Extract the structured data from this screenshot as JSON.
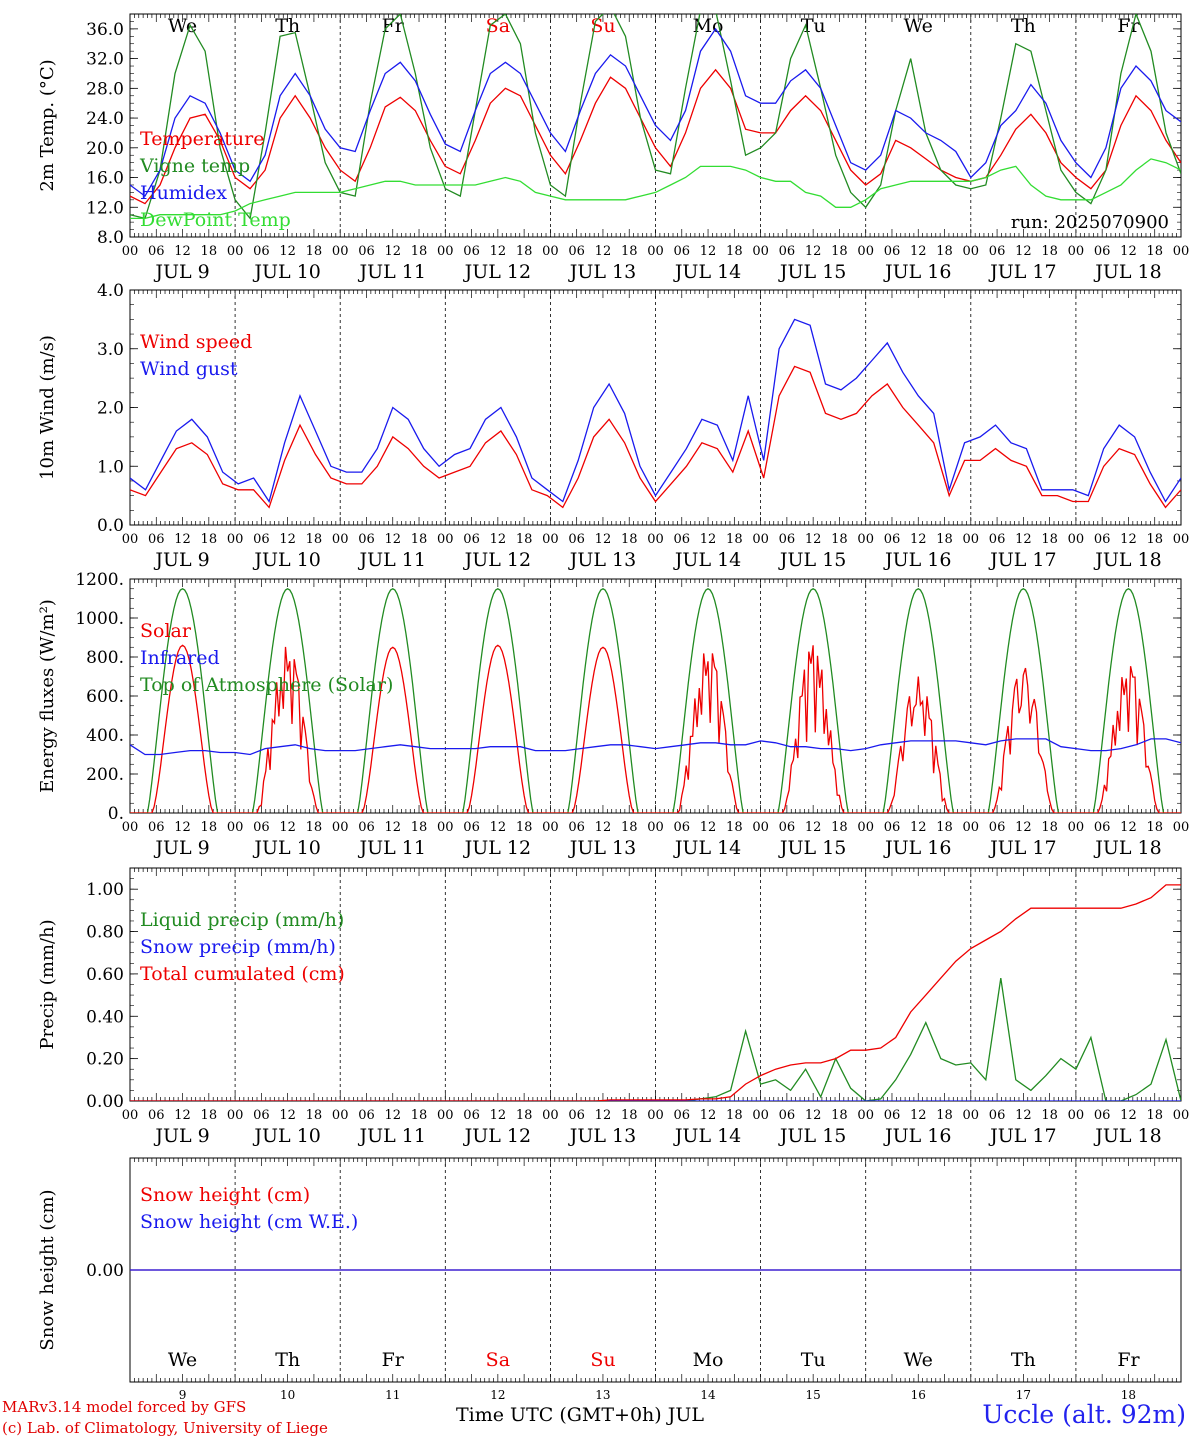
{
  "footer": {
    "model": "MARv3.14 model forced by GFS",
    "credit": "(c) Lab. of Climatology, University of Liege",
    "xlabel": "Time UTC (GMT+0h) JUL",
    "station": "Uccle (alt. 92m)"
  },
  "colors": {
    "red": "#ee0000",
    "green": "#228b22",
    "blue": "#1a1aee",
    "lightgreen": "#33dd33",
    "weekend": "#ee0000"
  },
  "chart_data": {
    "days": [
      "JUL  9",
      "JUL 10",
      "JUL 11",
      "JUL 12",
      "JUL 13",
      "JUL 14",
      "JUL 15",
      "JUL 16",
      "JUL 17",
      "JUL 18"
    ],
    "hour_ticks": [
      "00",
      "06",
      "12",
      "18"
    ],
    "weekdays": [
      "We",
      "Th",
      "Fr",
      "Sa",
      "Su",
      "Mo",
      "Tu",
      "We",
      "Th",
      "Fr"
    ],
    "weekend_days": [
      "Sa",
      "Su"
    ],
    "day_numbers": [
      "9",
      "10",
      "11",
      "12",
      "13",
      "14",
      "15",
      "16",
      "17",
      "18"
    ],
    "panels": [
      {
        "type": "line",
        "ylabel": "2m Temp. (°C)",
        "ylim": [
          8,
          38
        ],
        "yticks": [
          "8.0",
          "12.0",
          "16.0",
          "20.0",
          "24.0",
          "28.0",
          "32.0",
          "36.0"
        ],
        "annotation": "run: 2025070900",
        "legend": [
          "Temperature",
          "Vigne temp",
          "Humidex",
          "DewPoint Temp"
        ],
        "series": [
          {
            "name": "Temperature",
            "color": "red",
            "values": [
              13.5,
              12.5,
              15,
              20,
              24,
              24.5,
              21,
              16,
              14.5,
              17,
              24,
              27,
              24,
              20,
              17,
              15.5,
              20,
              25.5,
              26.8,
              25,
              21,
              17.5,
              16.5,
              21,
              26,
              28,
              27,
              23,
              19,
              16.5,
              21,
              26,
              29.5,
              28,
              24,
              20,
              17.5,
              22,
              28,
              30.5,
              28,
              22.5,
              22,
              22,
              25,
              27,
              25,
              21,
              17,
              15,
              16.5,
              21,
              20,
              18.5,
              17,
              16,
              15.5,
              16,
              19,
              22.5,
              24.5,
              22,
              18,
              16,
              14.5,
              17,
              23,
              27,
              25,
              21,
              18
            ]
          },
          {
            "name": "Vigne temp",
            "color": "green",
            "values": [
              11,
              10.5,
              17,
              30,
              36.5,
              33,
              20,
              13,
              10.5,
              22,
              35,
              35.5,
              27,
              18,
              14,
              13.5,
              26,
              36,
              38,
              30,
              20,
              14.5,
              13.5,
              25,
              36.5,
              38,
              34,
              22,
              15,
              13.5,
              26,
              37,
              39,
              35,
              24,
              17,
              16.5,
              28,
              38.5,
              38.5,
              29,
              19,
              20,
              22,
              32,
              36.5,
              28,
              19,
              14,
              12,
              15,
              25,
              32,
              22,
              17,
              15,
              14.5,
              15,
              24,
              34,
              33,
              25,
              17,
              14,
              12.5,
              17,
              30,
              38,
              33,
              22,
              16.5
            ]
          },
          {
            "name": "Humidex",
            "color": "blue",
            "values": [
              15,
              13.5,
              17,
              24,
              27,
              26,
              22,
              17,
              15.5,
              19,
              27,
              30,
              27,
              22.5,
              20,
              19.5,
              25,
              30,
              31.5,
              29,
              24.5,
              20.5,
              19.5,
              25,
              30,
              31.5,
              30,
              26,
              22,
              19.5,
              25,
              30,
              32.5,
              31,
              27,
              23,
              21,
              25,
              33,
              36,
              33,
              27,
              26,
              26,
              29,
              30.5,
              28,
              23,
              18,
              17,
              19,
              25,
              24,
              22,
              21,
              19.5,
              16,
              18,
              23,
              25,
              28.5,
              26,
              21,
              18,
              16,
              20,
              28,
              31,
              29,
              25,
              23.5
            ]
          },
          {
            "name": "DewPoint Temp",
            "color": "lightgreen",
            "values": [
              10.5,
              10.5,
              11,
              11,
              11,
              11,
              11,
              11.5,
              12.5,
              13,
              13.5,
              14,
              14,
              14,
              14,
              14.5,
              15,
              15.5,
              15.5,
              15,
              15,
              15,
              15,
              15,
              15.5,
              16,
              15.5,
              14,
              13.5,
              13,
              13,
              13,
              13,
              13,
              13.5,
              14,
              15,
              16,
              17.5,
              17.5,
              17.5,
              17,
              16,
              15.5,
              15.5,
              14,
              13.5,
              12,
              12,
              13,
              14.5,
              15,
              15.5,
              15.5,
              15.5,
              15.5,
              15.5,
              16,
              17,
              17.5,
              15,
              13.5,
              13,
              13,
              13,
              14,
              15,
              17,
              18.5,
              18,
              17
            ]
          }
        ]
      },
      {
        "type": "line",
        "ylabel": "10m Wind (m/s)",
        "ylim": [
          0,
          4
        ],
        "yticks": [
          "0.0",
          "1.0",
          "2.0",
          "3.0",
          "4.0"
        ],
        "legend": [
          "Wind speed",
          "Wind gust"
        ],
        "series": [
          {
            "name": "Wind speed",
            "color": "red",
            "values": [
              0.6,
              0.5,
              0.9,
              1.3,
              1.4,
              1.2,
              0.7,
              0.6,
              0.6,
              0.3,
              1.1,
              1.7,
              1.2,
              0.8,
              0.7,
              0.7,
              1.0,
              1.5,
              1.3,
              1.0,
              0.8,
              0.9,
              1.0,
              1.4,
              1.6,
              1.2,
              0.6,
              0.5,
              0.3,
              0.8,
              1.5,
              1.8,
              1.4,
              0.8,
              0.4,
              0.7,
              1.0,
              1.4,
              1.3,
              0.9,
              1.6,
              0.8,
              2.2,
              2.7,
              2.6,
              1.9,
              1.8,
              1.9,
              2.2,
              2.4,
              2.0,
              1.7,
              1.4,
              0.5,
              1.1,
              1.1,
              1.3,
              1.1,
              1.0,
              0.5,
              0.5,
              0.4,
              0.4,
              1.0,
              1.3,
              1.2,
              0.7,
              0.3,
              0.6
            ]
          },
          {
            "name": "Wind gust",
            "color": "blue",
            "values": [
              0.8,
              0.6,
              1.1,
              1.6,
              1.8,
              1.5,
              0.9,
              0.7,
              0.8,
              0.4,
              1.4,
              2.2,
              1.6,
              1.0,
              0.9,
              0.9,
              1.3,
              2.0,
              1.8,
              1.3,
              1.0,
              1.2,
              1.3,
              1.8,
              2.0,
              1.5,
              0.8,
              0.6,
              0.4,
              1.1,
              2.0,
              2.4,
              1.9,
              1.0,
              0.5,
              0.9,
              1.3,
              1.8,
              1.7,
              1.1,
              2.2,
              1.1,
              3.0,
              3.5,
              3.4,
              2.4,
              2.3,
              2.5,
              2.8,
              3.1,
              2.6,
              2.2,
              1.9,
              0.6,
              1.4,
              1.5,
              1.7,
              1.4,
              1.3,
              0.6,
              0.6,
              0.6,
              0.5,
              1.3,
              1.7,
              1.5,
              0.9,
              0.4,
              0.8
            ]
          }
        ]
      },
      {
        "type": "line",
        "ylabel": "Energy fluxes (W/m²)",
        "ylim": [
          0,
          1200
        ],
        "yticks": [
          "0.",
          "200.",
          "400.",
          "600.",
          "800.",
          "1000.",
          "1200."
        ],
        "legend": [
          "Solar",
          "Infrared",
          "Top of Atmosphere (Solar)"
        ],
        "series": [
          {
            "name": "Top of Atmosphere (Solar)",
            "color": "green",
            "kind": "toa",
            "peak": 1150
          },
          {
            "name": "Solar",
            "color": "red",
            "kind": "solar",
            "peaks": [
              860,
              860,
              850,
              860,
              850,
              850,
              860,
              700,
              750,
              760
            ],
            "cloudy": [
              false,
              true,
              false,
              false,
              false,
              true,
              true,
              true,
              true,
              true
            ]
          },
          {
            "name": "Infrared",
            "color": "blue",
            "values": [
              350,
              300,
              300,
              310,
              320,
              320,
              310,
              310,
              300,
              330,
              340,
              350,
              330,
              320,
              320,
              320,
              330,
              340,
              350,
              340,
              330,
              330,
              330,
              330,
              340,
              340,
              340,
              320,
              320,
              320,
              330,
              340,
              350,
              350,
              340,
              330,
              340,
              350,
              360,
              360,
              350,
              350,
              370,
              360,
              340,
              340,
              330,
              330,
              320,
              330,
              350,
              360,
              370,
              370,
              370,
              370,
              360,
              350,
              370,
              380,
              380,
              380,
              340,
              330,
              320,
              320,
              330,
              350,
              380,
              380,
              360
            ]
          }
        ]
      },
      {
        "type": "line",
        "ylabel": "Precip (mm/h)",
        "ylim": [
          0,
          1.1
        ],
        "yticks": [
          "0.00",
          "0.20",
          "0.40",
          "0.60",
          "0.80",
          "1.00"
        ],
        "legend": [
          "Liquid precip (mm/h)",
          "Snow precip (mm/h)",
          "Total cumulated (cm)"
        ],
        "series": [
          {
            "name": "Liquid precip (mm/h)",
            "color": "green",
            "values": [
              0,
              0,
              0,
              0,
              0,
              0,
              0,
              0,
              0,
              0,
              0,
              0,
              0,
              0,
              0,
              0,
              0,
              0,
              0,
              0,
              0,
              0,
              0,
              0,
              0,
              0,
              0,
              0,
              0,
              0,
              0,
              0,
              0,
              0,
              0,
              0,
              0,
              0,
              0.01,
              0.02,
              0.05,
              0.33,
              0.08,
              0.1,
              0.05,
              0.15,
              0.02,
              0.2,
              0.06,
              0.0,
              0.01,
              0.1,
              0.22,
              0.37,
              0.2,
              0.17,
              0.18,
              0.1,
              0.58,
              0.1,
              0.05,
              0.12,
              0.2,
              0.15,
              0.3,
              0.0,
              0.0,
              0.03,
              0.08,
              0.29,
              0.0
            ]
          },
          {
            "name": "Snow precip (mm/h)",
            "color": "blue",
            "values": [
              0,
              0,
              0,
              0,
              0,
              0,
              0,
              0,
              0,
              0,
              0,
              0,
              0,
              0,
              0,
              0,
              0,
              0,
              0,
              0,
              0,
              0,
              0,
              0,
              0,
              0,
              0,
              0,
              0,
              0,
              0,
              0,
              0,
              0,
              0,
              0,
              0,
              0,
              0,
              0,
              0,
              0,
              0,
              0,
              0,
              0,
              0,
              0,
              0,
              0,
              0,
              0,
              0,
              0,
              0,
              0,
              0,
              0,
              0,
              0,
              0,
              0,
              0,
              0,
              0,
              0,
              0,
              0,
              0,
              0,
              0
            ]
          },
          {
            "name": "Total cumulated (cm)",
            "color": "red",
            "values": [
              0,
              0,
              0,
              0,
              0,
              0,
              0,
              0,
              0,
              0,
              0,
              0,
              0,
              0,
              0,
              0,
              0,
              0,
              0,
              0,
              0,
              0,
              0,
              0,
              0,
              0,
              0,
              0,
              0,
              0,
              0,
              0,
              0.005,
              0.005,
              0.005,
              0.005,
              0.005,
              0.005,
              0.01,
              0.01,
              0.02,
              0.08,
              0.12,
              0.15,
              0.17,
              0.18,
              0.18,
              0.2,
              0.24,
              0.24,
              0.25,
              0.3,
              0.42,
              0.5,
              0.58,
              0.66,
              0.72,
              0.76,
              0.8,
              0.86,
              0.91,
              0.91,
              0.91,
              0.91,
              0.91,
              0.91,
              0.91,
              0.93,
              0.96,
              1.02,
              1.02
            ]
          }
        ]
      },
      {
        "type": "line",
        "ylabel": "Snow height (cm)",
        "ylim": [
          -1,
          1
        ],
        "yticks": [
          "0.00"
        ],
        "legend": [
          "Snow height (cm)",
          "Snow height (cm W.E.)"
        ],
        "series": [
          {
            "name": "Snow height (cm)",
            "color": "red",
            "values": [
              0,
              0
            ]
          },
          {
            "name": "Snow height (cm W.E.)",
            "color": "blue",
            "values": [
              0,
              0
            ]
          }
        ]
      }
    ]
  }
}
